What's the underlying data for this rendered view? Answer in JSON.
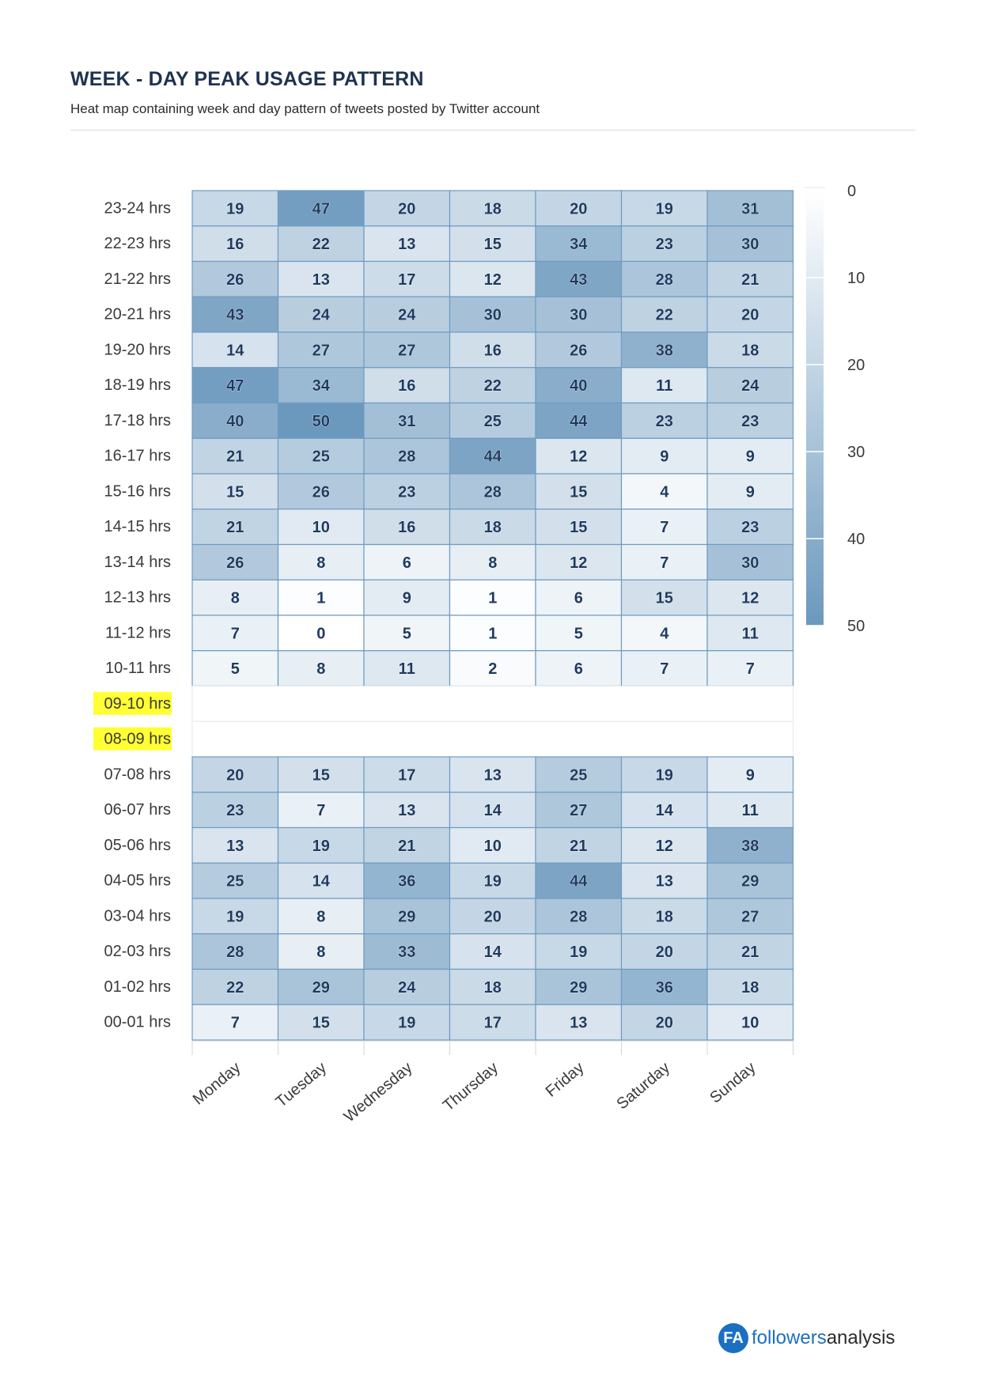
{
  "header": {
    "title": "WEEK - DAY PEAK USAGE PATTERN",
    "subtitle": "Heat map containing week and day pattern of tweets posted by Twitter account"
  },
  "brand": {
    "mark": "FA",
    "name_part1": "followers",
    "name_part2": "analysis",
    "color": "#1b6fc2"
  },
  "chart_data": {
    "type": "heatmap",
    "title": "",
    "xlabel": "",
    "ylabel": "",
    "x_categories": [
      "Monday",
      "Tuesday",
      "Wednesday",
      "Thursday",
      "Friday",
      "Saturday",
      "Sunday"
    ],
    "y_categories": [
      "23-24 hrs",
      "22-23 hrs",
      "21-22 hrs",
      "20-21 hrs",
      "19-20 hrs",
      "18-19 hrs",
      "17-18 hrs",
      "16-17 hrs",
      "15-16 hrs",
      "14-15 hrs",
      "13-14 hrs",
      "12-13 hrs",
      "11-12 hrs",
      "10-11 hrs",
      "09-10 hrs",
      "08-09 hrs",
      "07-08 hrs",
      "06-07 hrs",
      "05-06 hrs",
      "04-05 hrs",
      "03-04 hrs",
      "02-03 hrs",
      "01-02 hrs",
      "00-01 hrs"
    ],
    "highlighted_rows": [
      "09-10 hrs",
      "08-09 hrs"
    ],
    "highlight_color": "#ffff33",
    "values": [
      [
        19,
        47,
        20,
        18,
        20,
        19,
        31
      ],
      [
        16,
        22,
        13,
        15,
        34,
        23,
        30
      ],
      [
        26,
        13,
        17,
        12,
        43,
        28,
        21
      ],
      [
        43,
        24,
        24,
        30,
        30,
        22,
        20
      ],
      [
        14,
        27,
        27,
        16,
        26,
        38,
        18
      ],
      [
        47,
        34,
        16,
        22,
        40,
        11,
        24
      ],
      [
        40,
        50,
        31,
        25,
        44,
        23,
        23
      ],
      [
        21,
        25,
        28,
        44,
        12,
        9,
        9
      ],
      [
        15,
        26,
        23,
        28,
        15,
        4,
        9
      ],
      [
        21,
        10,
        16,
        18,
        15,
        7,
        23
      ],
      [
        26,
        8,
        6,
        8,
        12,
        7,
        30
      ],
      [
        8,
        1,
        9,
        1,
        6,
        15,
        12
      ],
      [
        7,
        0,
        5,
        1,
        5,
        4,
        11
      ],
      [
        5,
        8,
        11,
        2,
        6,
        7,
        7
      ],
      null,
      null,
      [
        20,
        15,
        17,
        13,
        25,
        19,
        9
      ],
      [
        23,
        7,
        13,
        14,
        27,
        14,
        11
      ],
      [
        13,
        19,
        21,
        10,
        21,
        12,
        38
      ],
      [
        25,
        14,
        36,
        19,
        44,
        13,
        29
      ],
      [
        19,
        8,
        29,
        20,
        28,
        18,
        27
      ],
      [
        28,
        8,
        33,
        14,
        19,
        20,
        21
      ],
      [
        22,
        29,
        24,
        18,
        29,
        36,
        18
      ],
      [
        7,
        15,
        19,
        17,
        13,
        20,
        10
      ]
    ],
    "color_scale": {
      "min": 0,
      "max": 50,
      "ticks": [
        0,
        10,
        20,
        30,
        40,
        50
      ],
      "min_color": "#ffffff",
      "max_color": "#6b98bd"
    },
    "cell_label_color": "#1e3a5f",
    "cell_border_color": "#6f9cc2",
    "legend_placement": "right"
  }
}
